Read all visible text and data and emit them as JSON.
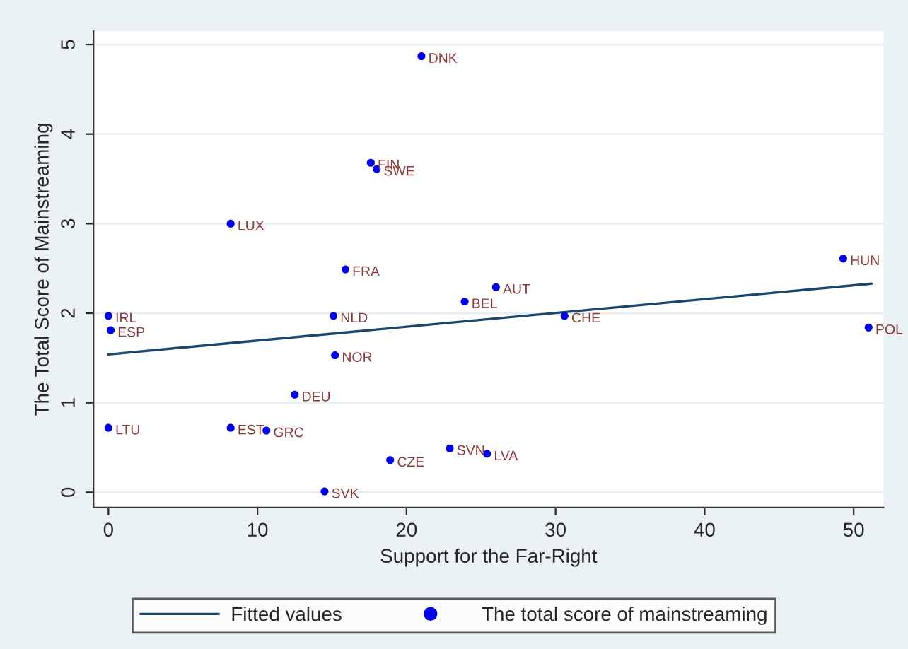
{
  "chart_data": {
    "type": "scatter",
    "xlabel": "Support for the Far-Right",
    "ylabel": "The Total Score of Mainstreaming",
    "xlim": [
      -1,
      52
    ],
    "ylim": [
      -0.17,
      5.15
    ],
    "xticks": [
      0,
      10,
      20,
      30,
      40,
      50
    ],
    "yticks": [
      0,
      1,
      2,
      3,
      4,
      5
    ],
    "grid": "y",
    "legend": "bottom",
    "series": [
      {
        "name": "Fitted values",
        "type": "line",
        "color": "#1a476f",
        "x": [
          0,
          51.2
        ],
        "values": [
          1.54,
          2.33
        ],
        "marker": "none",
        "line_style": "solid"
      },
      {
        "name": "The total score of mainstreaming",
        "type": "scatter",
        "color": "#0000e6",
        "marker": "circle",
        "x": [
          21.0,
          17.6,
          18.0,
          8.2,
          15.9,
          49.3,
          26.0,
          23.9,
          0,
          0.15,
          15.1,
          15.2,
          12.5,
          0,
          8.2,
          10.6,
          18.9,
          14.5,
          22.9,
          25.4,
          30.6,
          51.0
        ],
        "values": [
          4.87,
          3.68,
          3.61,
          3.0,
          2.49,
          2.61,
          2.29,
          2.13,
          1.97,
          1.81,
          1.97,
          1.53,
          1.09,
          0.72,
          0.72,
          0.69,
          0.36,
          0.01,
          0.49,
          0.43,
          1.97,
          1.84
        ]
      }
    ],
    "annotations": [
      {
        "text": "DNK",
        "x": 21.0,
        "y": 4.87
      },
      {
        "text": "FIN",
        "x": 17.6,
        "y": 3.68
      },
      {
        "text": "SWE",
        "x": 18.0,
        "y": 3.61
      },
      {
        "text": "LUX",
        "x": 8.2,
        "y": 3.0
      },
      {
        "text": "FRA",
        "x": 15.9,
        "y": 2.49
      },
      {
        "text": "HUN",
        "x": 49.3,
        "y": 2.61
      },
      {
        "text": "AUT",
        "x": 26.0,
        "y": 2.29
      },
      {
        "text": "BEL",
        "x": 23.9,
        "y": 2.13
      },
      {
        "text": "IRL",
        "x": 0,
        "y": 1.97
      },
      {
        "text": "ESP",
        "x": 0.15,
        "y": 1.81
      },
      {
        "text": "NLD",
        "x": 15.1,
        "y": 1.97
      },
      {
        "text": "NOR",
        "x": 15.2,
        "y": 1.53
      },
      {
        "text": "DEU",
        "x": 12.5,
        "y": 1.09
      },
      {
        "text": "LTU",
        "x": 0,
        "y": 0.72
      },
      {
        "text": "EST",
        "x": 8.2,
        "y": 0.72
      },
      {
        "text": "GRC",
        "x": 10.6,
        "y": 0.69
      },
      {
        "text": "CZE",
        "x": 18.9,
        "y": 0.36
      },
      {
        "text": "SVK",
        "x": 14.5,
        "y": 0.01
      },
      {
        "text": "SVN",
        "x": 22.9,
        "y": 0.49
      },
      {
        "text": "LVA",
        "x": 25.4,
        "y": 0.43
      },
      {
        "text": "CHE",
        "x": 30.6,
        "y": 1.97
      },
      {
        "text": "POL",
        "x": 51.0,
        "y": 1.84
      }
    ]
  }
}
